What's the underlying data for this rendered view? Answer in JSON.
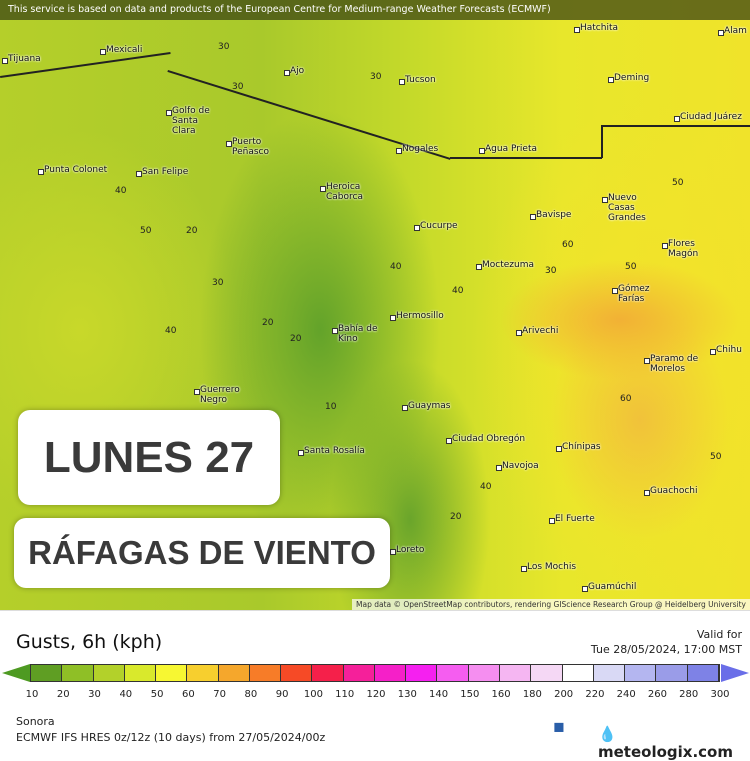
{
  "banner": "This service is based on data and products of the European Centre for Medium-range Weather Forecasts (ECMWF)",
  "overlay": {
    "day": "LUNES 27",
    "subtitle": "RÁFAGAS DE VIENTO"
  },
  "cities": [
    "Tijuana",
    "Mexicali",
    "Golfo de Santa Clara",
    "Puerto Peñasco",
    "Punta Colonet",
    "San Felipe",
    "Heroica Caborca",
    "Ajo",
    "Tucson",
    "Nogales",
    "Agua Prieta",
    "Deming",
    "Ciudad Juárez",
    "Bavispe",
    "Nuevo Casas Grandes",
    "Cucurpe",
    "Moctezuma",
    "Flores Magón",
    "Gómez Farías",
    "Hermosillo",
    "Bahía de Kino",
    "Arivechi",
    "Paramo de Morelos",
    "Chihu",
    "Guerrero Negro",
    "Guaymas",
    "Ciudad Obregón",
    "Chínipas",
    "Santa Rosalía",
    "Navojoa",
    "Guachochi",
    "El Fuerte",
    "Loreto",
    "Los Mochis",
    "Guamúchil",
    "Hatchita",
    "Alam"
  ],
  "contours": [
    "30",
    "30",
    "30",
    "40",
    "50",
    "20",
    "30",
    "40",
    "20",
    "20",
    "10",
    "40",
    "40",
    "50",
    "60",
    "50",
    "60",
    "50",
    "20",
    "30",
    "40"
  ],
  "attribution": "Map data © OpenStreetMap contributors, rendering GIScience Research Group @ Heidelberg University",
  "legend": {
    "title": "Gusts, 6h (kph)",
    "valid_label": "Valid for",
    "valid_time": "Tue 28/05/2024, 17:00 MST",
    "ticks": [
      "10",
      "20",
      "30",
      "40",
      "50",
      "60",
      "70",
      "80",
      "90",
      "100",
      "110",
      "120",
      "130",
      "140",
      "150",
      "160",
      "180",
      "200",
      "220",
      "240",
      "260",
      "280",
      "300"
    ],
    "colors": [
      "#5f9e23",
      "#8fbf26",
      "#b3d12a",
      "#d9e92c",
      "#f7f732",
      "#f7cf2e",
      "#f5a72c",
      "#f77c28",
      "#f64a26",
      "#f5204a",
      "#f5209a",
      "#f520c8",
      "#f520f0",
      "#f55df0",
      "#f58ef0",
      "#f5b6f2",
      "#f5d8f5",
      "#ffffff",
      "#d9d9f5",
      "#b4b6f0",
      "#9a9ce8",
      "#7e82e6"
    ],
    "region": "Sonora",
    "model": "ECMWF IFS HRES 0z/12z (10 days) from  27/05/2024/00z",
    "ecmwf_logo": "ECMWF",
    "brand": "meteologix.com"
  }
}
